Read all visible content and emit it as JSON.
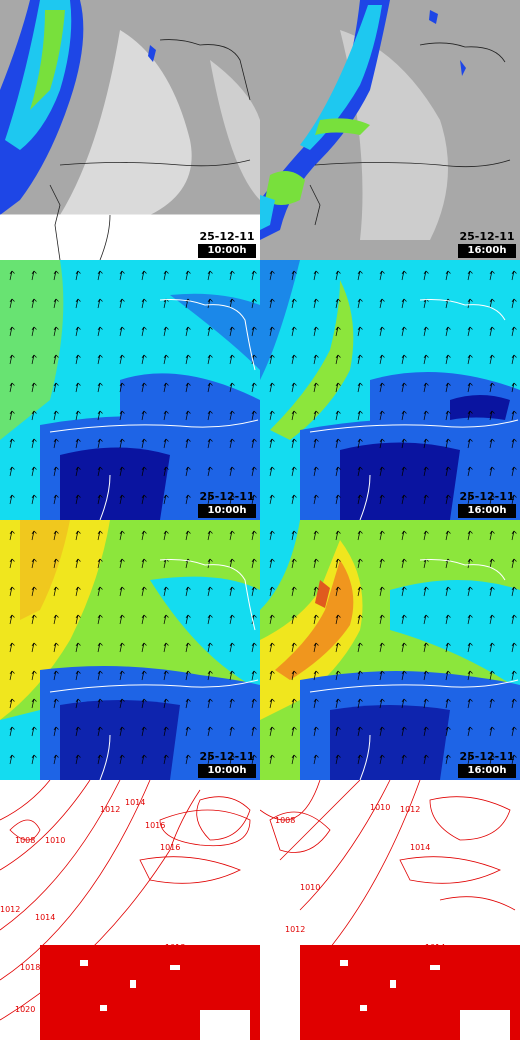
{
  "panels": {
    "precip_10": {
      "date": "25-12-11",
      "time": "10:00h"
    },
    "precip_16": {
      "date": "25-12-11",
      "time": "16:00h"
    },
    "wind_a_10": {
      "date": "25-12-11",
      "time": "10:00h"
    },
    "wind_a_16": {
      "date": "25-12-11",
      "time": "16:00h"
    },
    "wind_b_10": {
      "date": "25-12-11",
      "time": "10:00h"
    },
    "wind_b_16": {
      "date": "25-12-11",
      "time": "16:00h"
    }
  },
  "isobars": {
    "left": [
      "1012",
      "1014",
      "1016",
      "1008",
      "1010",
      "1012",
      "1014",
      "1016",
      "1018",
      "1020",
      "1018"
    ],
    "right": [
      "1008",
      "1010",
      "1012",
      "1014",
      "1010",
      "1012",
      "1014"
    ]
  },
  "colors": {
    "cloud_gray": "#a8a8a8",
    "precip_blue": "#1e46e6",
    "precip_cyan": "#1ec8f0",
    "precip_green": "#78e03c",
    "wind_dark": "#0a14a0",
    "wind_blue": "#1e64e6",
    "wind_cyan": "#14dcf0",
    "wind_green": "#8ce63c",
    "wind_yellow": "#f0e61e",
    "wind_orange": "#f0961e",
    "isobar_red": "#e00000",
    "coast": "#222222"
  }
}
